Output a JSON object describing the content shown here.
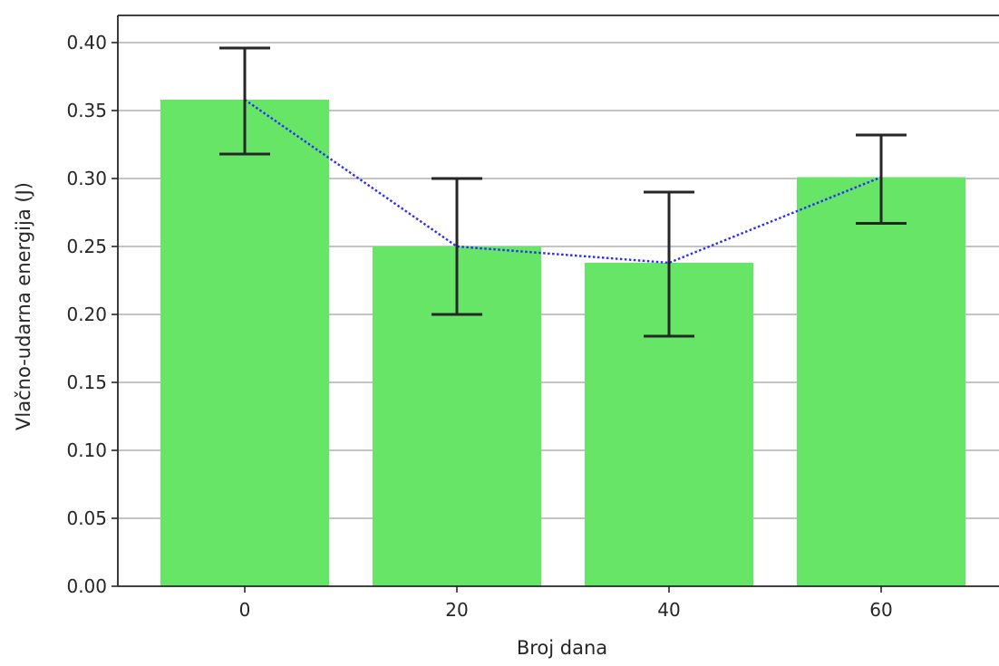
{
  "chart_data": {
    "type": "bar",
    "categories": [
      "0",
      "20",
      "40",
      "60"
    ],
    "values": [
      0.358,
      0.25,
      0.238,
      0.301
    ],
    "error_low": [
      0.318,
      0.2,
      0.184,
      0.267
    ],
    "error_high": [
      0.396,
      0.3,
      0.29,
      0.332
    ],
    "trend_line": {
      "values": [
        0.358,
        0.25,
        0.238,
        0.301
      ],
      "color": "#2b2bff",
      "style": "dotted"
    },
    "bar_color": "#66e566",
    "error_bar_color": "#262626",
    "xlabel": "Broj dana",
    "ylabel": "Vlačno-udarna energija (J)",
    "ylim": [
      0,
      0.42
    ],
    "yticks": [
      "0.00",
      "0.05",
      "0.10",
      "0.15",
      "0.20",
      "0.25",
      "0.30",
      "0.35",
      "0.40"
    ],
    "ytick_values": [
      0,
      0.05,
      0.1,
      0.15,
      0.2,
      0.25,
      0.3,
      0.35,
      0.4
    ],
    "grid": "horizontal"
  }
}
